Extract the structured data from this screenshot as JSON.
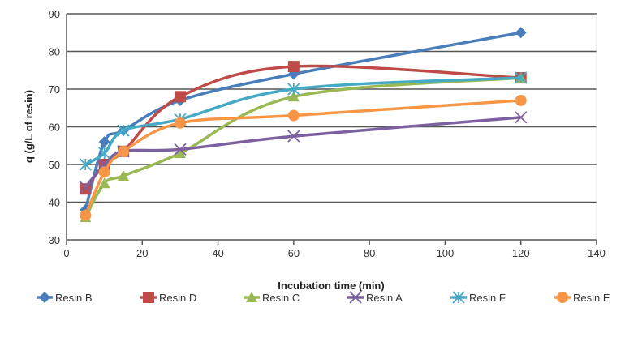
{
  "chart_data": {
    "type": "line",
    "title": "",
    "xlabel": "Incubation time (min)",
    "ylabel": "q (g/L of resin)",
    "xlim": [
      0,
      140
    ],
    "ylim": [
      30,
      90
    ],
    "xticks": [
      0,
      20,
      40,
      60,
      80,
      100,
      120,
      140
    ],
    "yticks": [
      30,
      40,
      50,
      60,
      70,
      80,
      90
    ],
    "grid": "horizontal",
    "smooth": true,
    "legend": "bottom",
    "x": [
      5,
      10,
      15,
      30,
      60,
      120
    ],
    "series": [
      {
        "name": "Resin B",
        "color": "#4a7ebb",
        "marker": "diamond",
        "values": [
          38,
          56,
          59,
          67,
          74,
          85
        ]
      },
      {
        "name": "Resin D",
        "color": "#be4b48",
        "marker": "square",
        "values": [
          43.5,
          50,
          53.5,
          68,
          76,
          73
        ]
      },
      {
        "name": "Resin C",
        "color": "#98b954",
        "marker": "triangle",
        "values": [
          36,
          45,
          47,
          53,
          68,
          73
        ]
      },
      {
        "name": "Resin A",
        "color": "#7d60a0",
        "marker": "x",
        "values": [
          44,
          50,
          53.5,
          54,
          57.5,
          62.5
        ]
      },
      {
        "name": "Resin F",
        "color": "#46aac5",
        "marker": "star",
        "values": [
          50,
          53,
          59,
          62,
          70,
          73
        ]
      },
      {
        "name": "Resin E",
        "color": "#f79646",
        "marker": "circle",
        "values": [
          36.5,
          48,
          53.5,
          61,
          63,
          67
        ]
      }
    ]
  }
}
